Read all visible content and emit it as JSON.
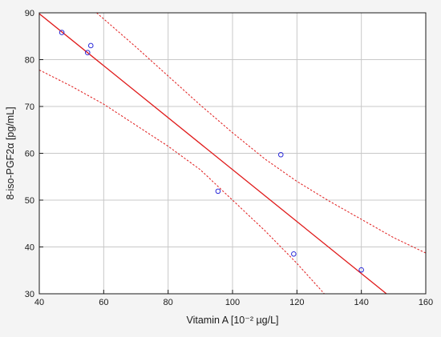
{
  "chart_data": {
    "type": "scatter",
    "title": "",
    "xlabel": "Vitamin A [10⁻² µg/L]",
    "ylabel": "8-iso-PGF2α [pg/mL]",
    "xlim": [
      40,
      160
    ],
    "ylim": [
      30,
      90
    ],
    "x_ticks": [
      40,
      60,
      80,
      100,
      120,
      140,
      160
    ],
    "y_ticks": [
      30,
      40,
      50,
      60,
      70,
      80,
      90
    ],
    "grid": true,
    "legend": "none",
    "points": [
      {
        "x": 47,
        "y": 85.8
      },
      {
        "x": 55,
        "y": 81.5
      },
      {
        "x": 56,
        "y": 83.0
      },
      {
        "x": 95.5,
        "y": 51.9
      },
      {
        "x": 115,
        "y": 59.7
      },
      {
        "x": 119,
        "y": 38.5
      },
      {
        "x": 140,
        "y": 35.1
      }
    ],
    "regression": {
      "x": [
        40,
        147.8
      ],
      "y": [
        89.8,
        30.0
      ]
    },
    "ci_upper": {
      "x": [
        57.8,
        60,
        70,
        80,
        90,
        100,
        110,
        120,
        130,
        140,
        150,
        160
      ],
      "y": [
        90.0,
        88.7,
        82.7,
        76.5,
        70.3,
        64.4,
        58.8,
        54.0,
        49.8,
        45.9,
        42.0,
        38.7
      ]
    },
    "ci_lower": {
      "x": [
        40,
        50,
        60,
        70,
        80,
        90,
        100,
        110,
        120,
        128.5
      ],
      "y": [
        77.8,
        74.3,
        70.5,
        66.0,
        61.5,
        56.5,
        50.0,
        43.5,
        36.5,
        30.0
      ]
    },
    "colors": {
      "points": "#2b2bd9",
      "regression": "#e01a1a",
      "ci": "#e01a1a",
      "grid": "#c8c8c8",
      "frame": "#1a1a1a",
      "plot_background": "#ffffff"
    }
  }
}
